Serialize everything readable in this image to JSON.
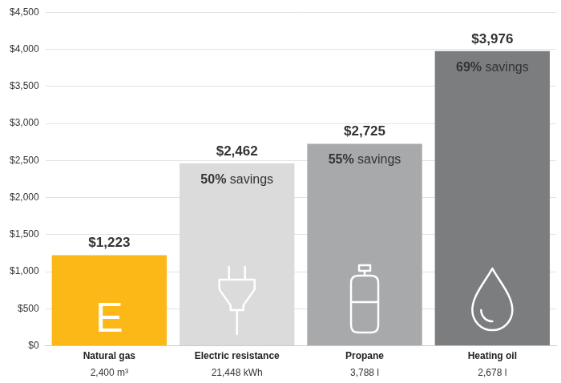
{
  "chart_data": {
    "type": "bar",
    "categories": [
      "Natural gas",
      "Electric resistance",
      "Propane",
      "Heating oil"
    ],
    "category_sublabels": [
      "2,400 m³",
      "21,448 kWh",
      "3,788 l",
      "2,678 l"
    ],
    "values": [
      1223,
      2462,
      2725,
      3976
    ],
    "value_labels": [
      "$1,223",
      "$2,462",
      "$2,725",
      "$3,976"
    ],
    "data_labels": true,
    "annotations": [
      null,
      "50% savings",
      "55% savings",
      "69% savings"
    ],
    "bar_text": [
      "E",
      null,
      null,
      null
    ],
    "colors": [
      "#fbb817",
      "#dadbda",
      "#a7a9aa",
      "#7c7d7f"
    ],
    "ylim": [
      0,
      4500
    ],
    "yticks": [
      {
        "value": 0,
        "label": "$0"
      },
      {
        "value": 500,
        "label": "$500"
      },
      {
        "value": 1000,
        "label": "$1,000"
      },
      {
        "value": 1500,
        "label": "$1,500"
      },
      {
        "value": 2000,
        "label": "$2,000"
      },
      {
        "value": 2500,
        "label": "$2,500"
      },
      {
        "value": 3000,
        "label": "$3,000"
      },
      {
        "value": 3500,
        "label": "$3,500"
      },
      {
        "value": 4000,
        "label": "$4,000"
      },
      {
        "value": 4500,
        "label": "$4,500"
      }
    ],
    "grid": true
  }
}
